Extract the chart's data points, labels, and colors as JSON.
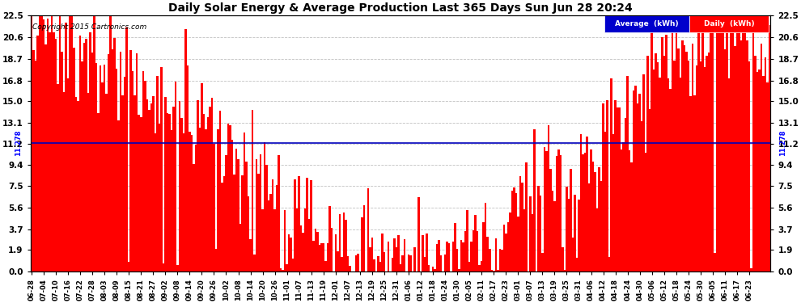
{
  "title": "Daily Solar Energy & Average Production Last 365 Days Sun Jun 28 20:24",
  "copyright": "Copyright 2015 Cartronics.com",
  "average_value": 11.278,
  "average_label": "11.278",
  "yticks": [
    0.0,
    1.9,
    3.7,
    5.6,
    7.5,
    9.4,
    11.2,
    13.1,
    15.0,
    16.8,
    18.7,
    20.6,
    22.5
  ],
  "ymax": 22.5,
  "ymin": 0.0,
  "bar_color": "#ff0000",
  "avg_line_color": "#0000bb",
  "background_color": "#ffffff",
  "grid_color": "#bbbbbb",
  "legend_avg_bg": "#0000cc",
  "legend_daily_bg": "#ff0000",
  "legend_text_avg": "Average  (kWh)",
  "legend_text_daily": "Daily  (kWh)",
  "x_labels": [
    "06-28",
    "07-04",
    "07-10",
    "07-16",
    "07-22",
    "07-28",
    "08-03",
    "08-09",
    "08-15",
    "08-21",
    "08-27",
    "09-02",
    "09-08",
    "09-14",
    "09-20",
    "09-26",
    "10-02",
    "10-08",
    "10-14",
    "10-20",
    "10-26",
    "11-01",
    "11-07",
    "11-13",
    "11-19",
    "12-01",
    "12-07",
    "12-13",
    "12-19",
    "12-25",
    "12-31",
    "01-06",
    "01-12",
    "01-18",
    "01-24",
    "01-30",
    "02-05",
    "02-11",
    "02-17",
    "02-23",
    "03-01",
    "03-07",
    "03-13",
    "03-19",
    "03-25",
    "03-31",
    "04-06",
    "04-12",
    "04-18",
    "04-24",
    "04-30",
    "05-06",
    "05-12",
    "05-18",
    "05-24",
    "05-30",
    "06-05",
    "06-11",
    "06-17",
    "06-23"
  ]
}
